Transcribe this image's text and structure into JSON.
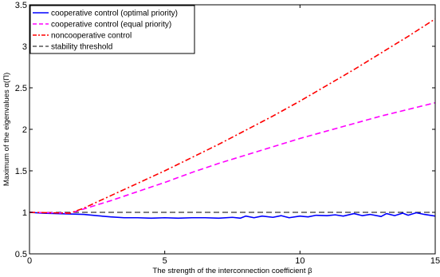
{
  "chart_data": {
    "type": "line",
    "title": "",
    "xlabel": "The strength of the interconnection coefficient β",
    "ylabel": "Maximum of the eigenvalues α(Π)",
    "xlim": [
      0,
      15
    ],
    "ylim": [
      0.5,
      3.5
    ],
    "xticks": [
      0,
      5,
      10,
      15
    ],
    "yticks": [
      0.5,
      1,
      1.5,
      2,
      2.5,
      3,
      3.5
    ],
    "xtick_labels": [
      "0",
      "5",
      "10",
      "15"
    ],
    "ytick_labels": [
      "0.5",
      "1",
      "1.5",
      "2",
      "2.5",
      "3",
      "3.5"
    ],
    "grid": false,
    "legend_position": "top-left",
    "series": [
      {
        "name": "cooperative control (optimal priority)",
        "color": "#0000ff",
        "style": "solid",
        "x": [
          0,
          0.5,
          1,
          1.5,
          2,
          2.5,
          3,
          3.5,
          4,
          4.5,
          5,
          5.5,
          6,
          6.5,
          7,
          7.5,
          7.8,
          8,
          8.3,
          8.6,
          9,
          9.3,
          9.6,
          10,
          10.3,
          10.6,
          11,
          11.3,
          11.6,
          12,
          12.3,
          12.6,
          13,
          13.2,
          13.5,
          13.8,
          14,
          14.3,
          14.6,
          15
        ],
        "values": [
          1.0,
          0.99,
          0.985,
          0.98,
          0.975,
          0.96,
          0.945,
          0.935,
          0.935,
          0.93,
          0.935,
          0.93,
          0.935,
          0.935,
          0.93,
          0.94,
          0.93,
          0.955,
          0.935,
          0.955,
          0.94,
          0.96,
          0.935,
          0.955,
          0.945,
          0.965,
          0.96,
          0.97,
          0.955,
          0.985,
          0.96,
          0.975,
          0.95,
          0.985,
          0.96,
          0.99,
          0.965,
          0.995,
          0.975,
          0.955
        ]
      },
      {
        "name": "cooperative control (equal priority)",
        "color": "#ff00ff",
        "style": "dashed",
        "x": [
          0,
          1.5,
          2,
          3,
          4,
          5,
          6,
          7,
          8,
          9,
          10,
          11,
          12,
          13,
          14,
          15
        ],
        "values": [
          1.0,
          0.99,
          1.04,
          1.14,
          1.25,
          1.36,
          1.48,
          1.59,
          1.69,
          1.79,
          1.89,
          1.98,
          2.07,
          2.16,
          2.24,
          2.32
        ]
      },
      {
        "name": "noncooperative control",
        "color": "#ff0000",
        "style": "dashdot",
        "x": [
          0,
          1.5,
          2,
          3,
          4,
          5,
          6,
          7,
          8,
          9,
          10,
          11,
          12,
          13,
          14,
          15
        ],
        "values": [
          1.0,
          0.99,
          1.05,
          1.2,
          1.35,
          1.5,
          1.66,
          1.82,
          1.99,
          2.16,
          2.34,
          2.53,
          2.72,
          2.92,
          3.12,
          3.33
        ]
      },
      {
        "name": "stability threshold",
        "color": "#000000",
        "style": "dashed",
        "x": [
          0,
          15
        ],
        "values": [
          1.0,
          1.0
        ]
      }
    ]
  }
}
